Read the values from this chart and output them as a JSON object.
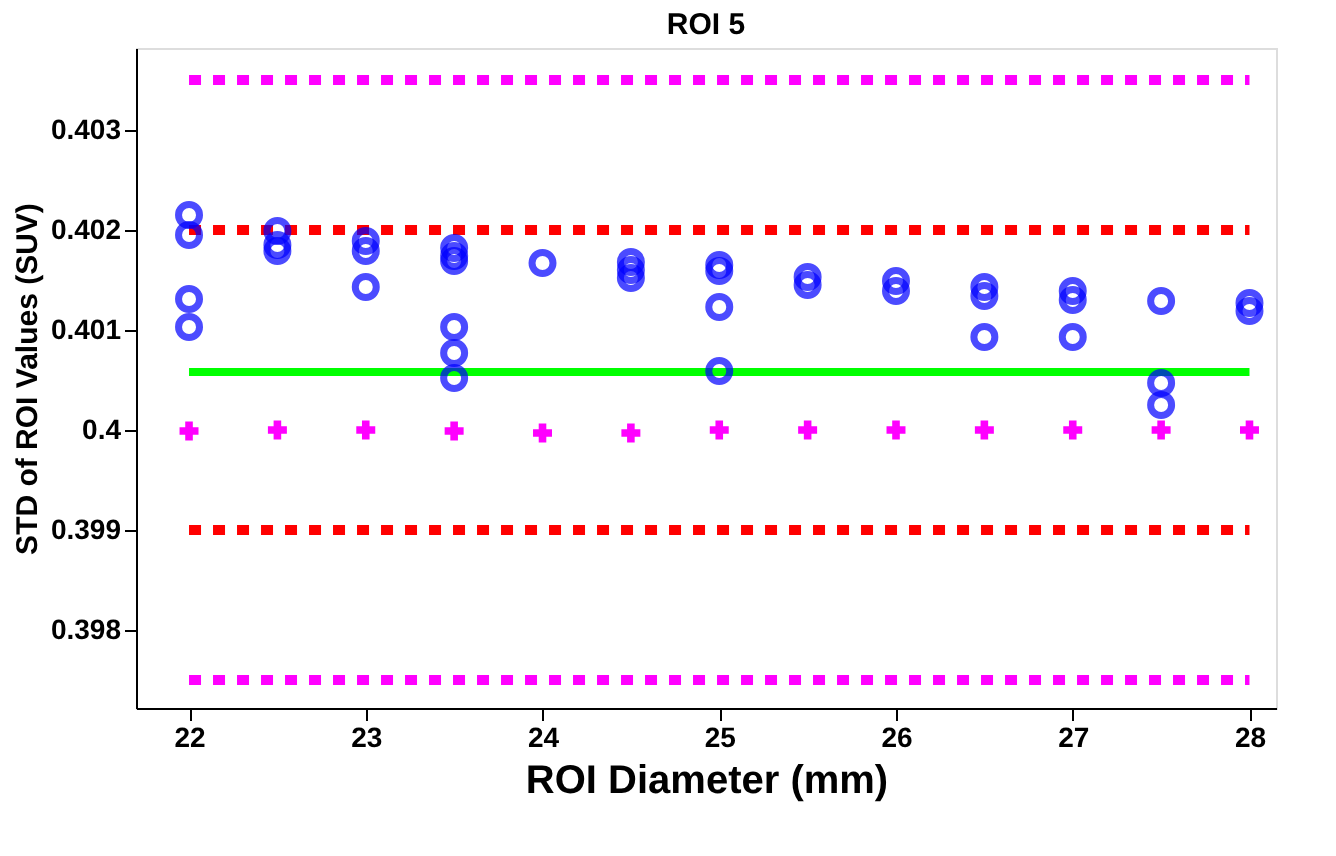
{
  "chart_data": {
    "type": "scatter",
    "title": "ROI 5",
    "xlabel": "ROI Diameter (mm)",
    "ylabel": "STD of ROI Values (SUV)",
    "xlim": [
      21.7,
      28.15
    ],
    "xticks": [
      22,
      23,
      24,
      25,
      26,
      27,
      28
    ],
    "ylim": [
      0.39722,
      0.40382
    ],
    "yticks": [
      0.398,
      0.399,
      0.4,
      0.401,
      0.402,
      0.403
    ],
    "grid": false,
    "series": [
      {
        "type": "line",
        "color": "#ff00ff",
        "line_style": "dotted",
        "marker": "none",
        "x": [
          22,
          28
        ],
        "values": [
          0.4035,
          0.4035
        ]
      },
      {
        "type": "line",
        "color": "#ff0000",
        "line_style": "dotted",
        "marker": "none",
        "x": [
          22,
          28
        ],
        "values": [
          0.402,
          0.402
        ]
      },
      {
        "type": "line",
        "color": "#00ff00",
        "line_style": "solid",
        "marker": "none",
        "x": [
          22,
          28
        ],
        "values": [
          0.40058,
          0.40058
        ]
      },
      {
        "type": "line",
        "color": "#ff0000",
        "line_style": "dotted",
        "marker": "none",
        "x": [
          22,
          28
        ],
        "values": [
          0.399,
          0.399
        ]
      },
      {
        "type": "line",
        "color": "#ff00ff",
        "line_style": "dotted",
        "marker": "none",
        "x": [
          22,
          28
        ],
        "values": [
          0.3975,
          0.3975
        ]
      },
      {
        "color": "#ff00ff",
        "marker": "cross",
        "x": [
          22,
          22.5,
          23,
          23.5,
          24,
          24.5,
          25,
          25.5,
          26,
          26.5,
          27,
          27.5,
          28
        ],
        "values": [
          0.39999,
          0.4,
          0.4,
          0.39999,
          0.39997,
          0.39997,
          0.4,
          0.4,
          0.4,
          0.4,
          0.4,
          0.4,
          0.4
        ]
      },
      {
        "color": "#0000ff",
        "marker": "circle",
        "x": [
          22,
          22,
          22,
          22,
          22.5,
          22.5,
          22.5,
          23,
          23,
          23,
          23.5,
          23.5,
          23.5,
          23.5,
          23.5,
          23.5,
          24,
          24.5,
          24.5,
          24.5,
          25,
          25,
          25,
          25,
          25.5,
          25.5,
          26,
          26,
          26.5,
          26.5,
          26.5,
          27,
          27,
          27,
          27.5,
          27.5,
          27.5,
          28,
          28
        ],
        "values": [
          0.40215,
          0.40195,
          0.40131,
          0.40103,
          0.40199,
          0.40185,
          0.40179,
          0.40189,
          0.40179,
          0.40143,
          0.40182,
          0.40174,
          0.40169,
          0.40103,
          0.40077,
          0.40052,
          0.40167,
          0.40168,
          0.4016,
          0.40152,
          0.40165,
          0.40159,
          0.40123,
          0.40059,
          0.40153,
          0.40145,
          0.40149,
          0.40139,
          0.40143,
          0.40134,
          0.40093,
          0.40139,
          0.4013,
          0.40093,
          0.40129,
          0.40047,
          0.40025,
          0.40127,
          0.40119
        ]
      }
    ]
  }
}
